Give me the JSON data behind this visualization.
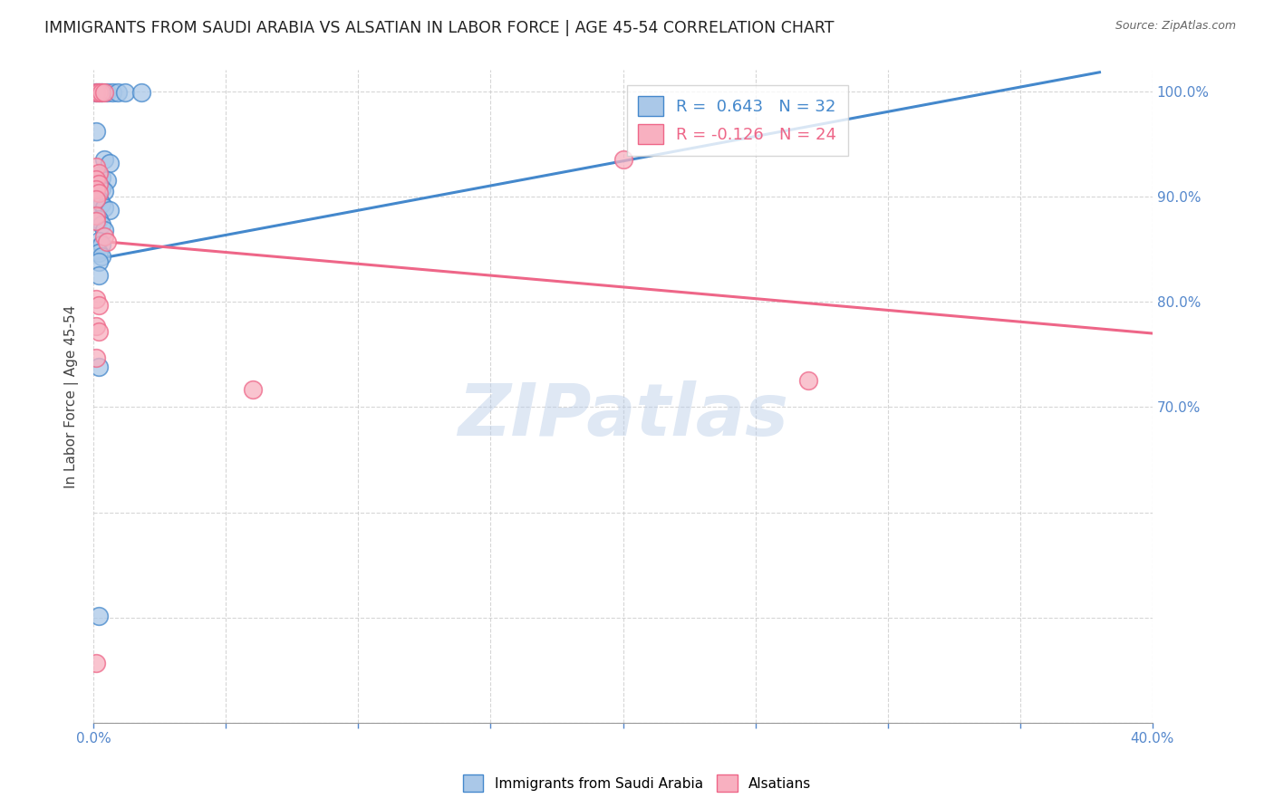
{
  "title": "IMMIGRANTS FROM SAUDI ARABIA VS ALSATIAN IN LABOR FORCE | AGE 45-54 CORRELATION CHART",
  "source": "Source: ZipAtlas.com",
  "ylabel": "In Labor Force | Age 45-54",
  "xlim": [
    0.0,
    0.4
  ],
  "ylim": [
    0.4,
    1.02
  ],
  "xticks": [
    0.0,
    0.05,
    0.1,
    0.15,
    0.2,
    0.25,
    0.3,
    0.35,
    0.4
  ],
  "yticks_right": [
    0.7,
    0.8,
    0.9,
    1.0
  ],
  "blue_color": "#aac8e8",
  "pink_color": "#f8b0c0",
  "blue_line_color": "#4488cc",
  "pink_line_color": "#ee6688",
  "legend_blue_label": "R =  0.643   N = 32",
  "legend_pink_label": "R = -0.126   N = 24",
  "watermark": "ZIPatlas",
  "blue_dots": [
    [
      0.001,
      0.999
    ],
    [
      0.002,
      0.999
    ],
    [
      0.003,
      0.999
    ],
    [
      0.005,
      0.999
    ],
    [
      0.007,
      0.999
    ],
    [
      0.009,
      0.999
    ],
    [
      0.012,
      0.999
    ],
    [
      0.018,
      0.999
    ],
    [
      0.001,
      0.962
    ],
    [
      0.004,
      0.935
    ],
    [
      0.006,
      0.932
    ],
    [
      0.002,
      0.92
    ],
    [
      0.003,
      0.918
    ],
    [
      0.005,
      0.915
    ],
    [
      0.002,
      0.91
    ],
    [
      0.003,
      0.908
    ],
    [
      0.004,
      0.905
    ],
    [
      0.002,
      0.897
    ],
    [
      0.003,
      0.893
    ],
    [
      0.004,
      0.89
    ],
    [
      0.006,
      0.887
    ],
    [
      0.002,
      0.878
    ],
    [
      0.003,
      0.873
    ],
    [
      0.004,
      0.868
    ],
    [
      0.002,
      0.858
    ],
    [
      0.003,
      0.854
    ],
    [
      0.002,
      0.847
    ],
    [
      0.003,
      0.843
    ],
    [
      0.002,
      0.838
    ],
    [
      0.002,
      0.825
    ],
    [
      0.002,
      0.738
    ],
    [
      0.002,
      0.502
    ]
  ],
  "pink_dots": [
    [
      0.001,
      0.999
    ],
    [
      0.002,
      0.999
    ],
    [
      0.003,
      0.999
    ],
    [
      0.004,
      0.999
    ],
    [
      0.001,
      0.928
    ],
    [
      0.002,
      0.922
    ],
    [
      0.001,
      0.916
    ],
    [
      0.002,
      0.912
    ],
    [
      0.001,
      0.907
    ],
    [
      0.002,
      0.903
    ],
    [
      0.001,
      0.897
    ],
    [
      0.001,
      0.882
    ],
    [
      0.001,
      0.877
    ],
    [
      0.004,
      0.862
    ],
    [
      0.005,
      0.857
    ],
    [
      0.2,
      0.935
    ],
    [
      0.001,
      0.803
    ],
    [
      0.002,
      0.797
    ],
    [
      0.001,
      0.777
    ],
    [
      0.002,
      0.772
    ],
    [
      0.001,
      0.747
    ],
    [
      0.27,
      0.725
    ],
    [
      0.06,
      0.717
    ],
    [
      0.001,
      0.457
    ]
  ],
  "blue_line": [
    [
      0.0,
      0.84
    ],
    [
      0.38,
      1.018
    ]
  ],
  "pink_line": [
    [
      0.0,
      0.858
    ],
    [
      0.4,
      0.77
    ]
  ]
}
